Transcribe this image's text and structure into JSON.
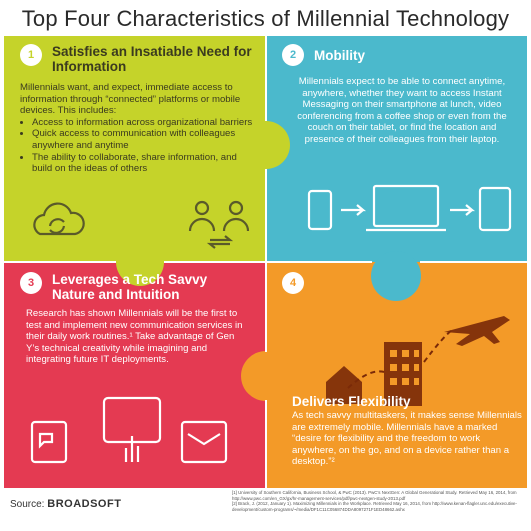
{
  "title": "Top Four Characteristics of Millennial Technology",
  "colors": {
    "green": "#c5d32a",
    "teal": "#4bb9cc",
    "red": "#e43a52",
    "orange": "#f39a28"
  },
  "panels": [
    {
      "number": "1",
      "heading": "Satisfies an Insatiable Need for Information",
      "intro": "Millennials want, and expect, immediate access to information through “connected” platforms or mobile devices.  This includes:",
      "bullets": [
        "Access to information across organizational barriers",
        "Quick access to communication with colleagues anywhere and anytime",
        "The ability to collaborate, share information, and build on the ideas of others"
      ],
      "icons": [
        "cloud-sync-icon",
        "people-exchange-icon"
      ]
    },
    {
      "number": "2",
      "heading": "Mobility",
      "body": "Millennials expect to be able to connect anytime, anywhere, whether they want to access Instant Messaging on their smartphone at lunch, video conferencing from a coffee shop or even from the couch on their tablet, or find the location and presence of their colleagues from their laptop.",
      "icons": [
        "phone-icon",
        "arrow-icon",
        "laptop-icon",
        "arrow-icon",
        "tablet-icon"
      ]
    },
    {
      "number": "3",
      "heading": "Leverages a Tech Savvy Nature and Intuition",
      "body": "Research has shown Millennials will be the first to test and implement new communication services in their daily work routines.¹ Take advantage of Gen Y’s technical creativity while imagining and integrating future IT deployments.",
      "icons": [
        "phone-chat-icon",
        "tablet-touch-icon",
        "email-icon"
      ]
    },
    {
      "number": "4",
      "heading": "Delivers Flexibility",
      "body": "As tech savvy multitaskers, it makes sense Millennials are extremely mobile. Millennials have a marked “desire for flexibility and the freedom to work anywhere, on the go, and on a device rather than a desktop.”²",
      "icons": [
        "house-icon",
        "office-building-icon",
        "airplane-icon"
      ]
    }
  ],
  "footer": {
    "source_label": "Source:",
    "source_brand": "BROADSOFT",
    "note1": "[1] University of Southern California, Business School, & PwC (2013). PwC's NextGen: A Global Generational Study. Retrieved May 16, 2014, from http://www.pwc.com/en_GX/gx/hr-management-services/pdf/pwc-nextgen-study-2013.pdf",
    "note2": "[2] Brack, J. (2012, January 1). Maximizing Millennials in the Workplace. Retrieved May 16, 2014, from http://www.kenan-flagler.unc.edu/executive-development/custom-programs/~/media/DF1C11C056874DDA8097271F1ED48662.ashx"
  }
}
